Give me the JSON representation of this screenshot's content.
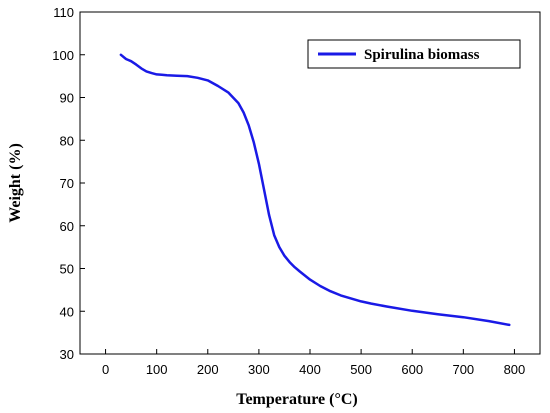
{
  "chart_data": {
    "type": "line",
    "xlabel": "Temperature (°C)",
    "ylabel": "Weight (%)",
    "xlim": [
      -50,
      850
    ],
    "ylim": [
      30,
      110
    ],
    "xticks": [
      0,
      100,
      200,
      300,
      400,
      500,
      600,
      700,
      800
    ],
    "yticks": [
      30,
      40,
      50,
      60,
      70,
      80,
      90,
      100,
      110
    ],
    "grid": false,
    "legend": {
      "position": "top-right"
    },
    "series": [
      {
        "name": "Spirulina biomass",
        "color": "#1a1ae6",
        "x": [
          30,
          40,
          50,
          60,
          70,
          80,
          90,
          100,
          110,
          120,
          140,
          160,
          180,
          200,
          220,
          240,
          260,
          270,
          280,
          290,
          300,
          310,
          320,
          330,
          340,
          350,
          360,
          370,
          380,
          400,
          420,
          440,
          460,
          480,
          500,
          520,
          550,
          600,
          650,
          700,
          750,
          790
        ],
        "y": [
          100,
          99,
          98.5,
          97.7,
          96.8,
          96.1,
          95.7,
          95.4,
          95.3,
          95.2,
          95.1,
          95.0,
          94.6,
          94.0,
          92.7,
          91.2,
          88.7,
          86.5,
          83.5,
          79.5,
          74.5,
          68.5,
          62.5,
          57.8,
          55.0,
          53.0,
          51.5,
          50.3,
          49.3,
          47.4,
          45.9,
          44.7,
          43.7,
          43.0,
          42.3,
          41.8,
          41.1,
          40.1,
          39.3,
          38.6,
          37.7,
          36.8
        ]
      }
    ]
  }
}
